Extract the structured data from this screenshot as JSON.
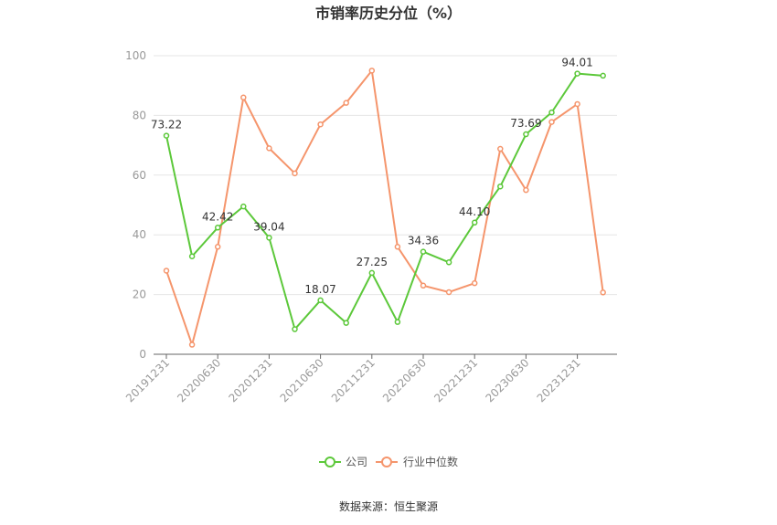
{
  "chart_data": {
    "type": "line",
    "title": "市销率历史分位（%）",
    "source": "数据来源：恒生聚源",
    "ylim": [
      0,
      100
    ],
    "yticks": [
      0,
      20,
      40,
      60,
      80,
      100
    ],
    "grid": true,
    "legend_position": "bottom",
    "x": [
      "20191231",
      "20200331",
      "20200630",
      "20200930",
      "20201231",
      "20210331",
      "20210630",
      "20210930",
      "20211231",
      "20220331",
      "20220630",
      "20220930",
      "20221231",
      "20230331",
      "20230630",
      "20230930",
      "20231231",
      "20240331"
    ],
    "x_tick_labels": [
      "20191231",
      "20200630",
      "20201231",
      "20210630",
      "20211231",
      "20220630",
      "20221231",
      "20230630",
      "20231231"
    ],
    "series": [
      {
        "name": "公司",
        "color": "#5cc83a",
        "values": [
          73.22,
          32.8,
          42.42,
          49.5,
          39.04,
          8.4,
          18.07,
          10.5,
          27.25,
          10.8,
          34.36,
          30.8,
          44.1,
          56.2,
          73.69,
          81.0,
          94.01,
          93.3
        ],
        "labels": [
          "73.22",
          "",
          "42.42",
          "",
          "39.04",
          "",
          "18.07",
          "",
          "27.25",
          "",
          "34.36",
          "",
          "44.10",
          "",
          "73.69",
          "",
          "94.01",
          ""
        ]
      },
      {
        "name": "行业中位数",
        "color": "#f5956c",
        "values": [
          28.0,
          3.2,
          36.0,
          86.0,
          69.0,
          60.6,
          77.0,
          84.2,
          95.0,
          36.0,
          23.0,
          20.8,
          23.8,
          68.8,
          55.0,
          77.8,
          83.8,
          20.7
        ]
      }
    ]
  }
}
